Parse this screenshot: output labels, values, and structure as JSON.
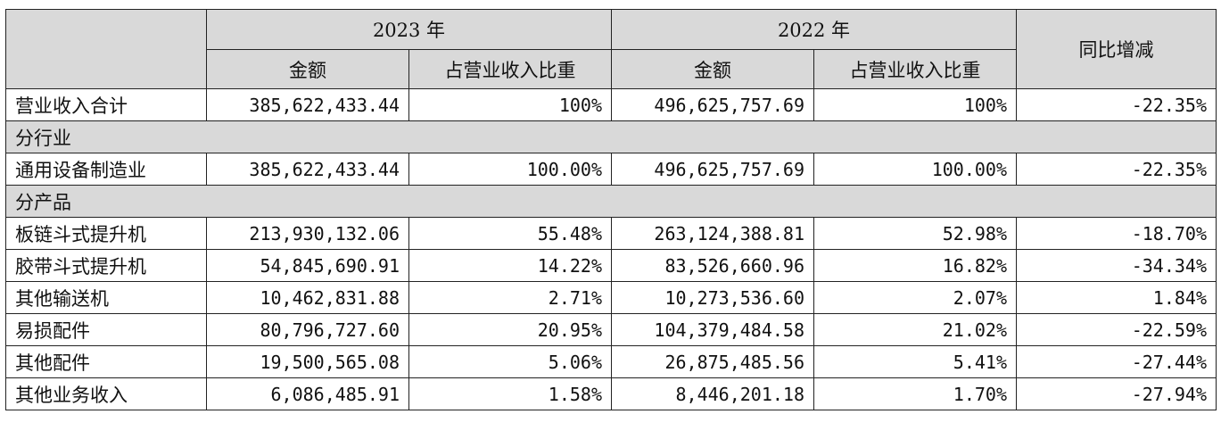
{
  "header": {
    "year_2023": "2023 年",
    "year_2022": "2022 年",
    "yoy": "同比增减",
    "amount": "金额",
    "share": "占营业收入比重"
  },
  "total": {
    "label": "营业收入合计",
    "amt_2023": "385,622,433.44",
    "pct_2023": "100%",
    "amt_2022": "496,625,757.69",
    "pct_2022": "100%",
    "yoy": "-22.35%"
  },
  "industry_section": "分行业",
  "industry": {
    "label": "通用设备制造业",
    "amt_2023": "385,622,433.44",
    "pct_2023": "100.00%",
    "amt_2022": "496,625,757.69",
    "pct_2022": "100.00%",
    "yoy": "-22.35%"
  },
  "product_section": "分产品",
  "products": [
    {
      "label": "板链斗式提升机",
      "amt_2023": "213,930,132.06",
      "pct_2023": "55.48%",
      "amt_2022": "263,124,388.81",
      "pct_2022": "52.98%",
      "yoy": "-18.70%"
    },
    {
      "label": "胶带斗式提升机",
      "amt_2023": "54,845,690.91",
      "pct_2023": "14.22%",
      "amt_2022": "83,526,660.96",
      "pct_2022": "16.82%",
      "yoy": "-34.34%"
    },
    {
      "label": "其他输送机",
      "amt_2023": "10,462,831.88",
      "pct_2023": "2.71%",
      "amt_2022": "10,273,536.60",
      "pct_2022": "2.07%",
      "yoy": "1.84%"
    },
    {
      "label": "易损配件",
      "amt_2023": "80,796,727.60",
      "pct_2023": "20.95%",
      "amt_2022": "104,379,484.58",
      "pct_2022": "21.02%",
      "yoy": "-22.59%"
    },
    {
      "label": "其他配件",
      "amt_2023": "19,500,565.08",
      "pct_2023": "5.06%",
      "amt_2022": "26,875,485.56",
      "pct_2022": "5.41%",
      "yoy": "-27.44%"
    },
    {
      "label": "其他业务收入",
      "amt_2023": "6,086,485.91",
      "pct_2023": "1.58%",
      "amt_2022": "8,446,201.18",
      "pct_2022": "1.70%",
      "yoy": "-27.94%"
    }
  ]
}
